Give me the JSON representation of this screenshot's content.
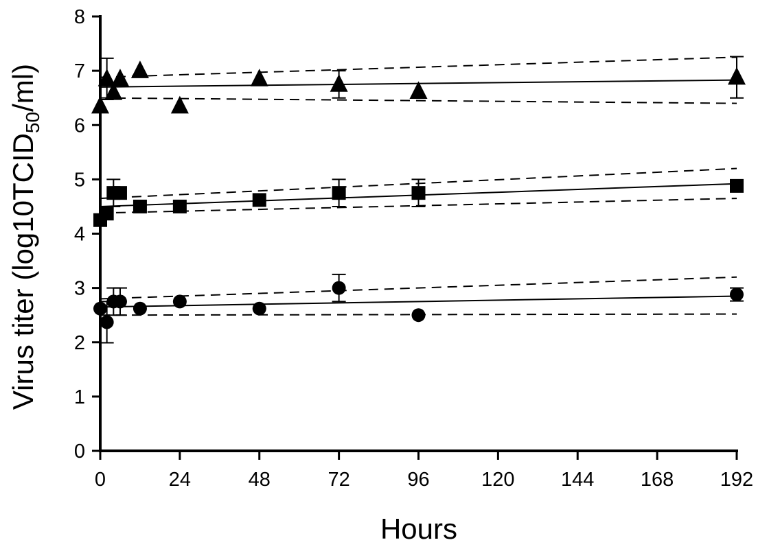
{
  "chart_data": {
    "type": "scatter",
    "title": "",
    "xlabel": "Hours",
    "ylabel": {
      "prefix": "Virus titer (log10TCID",
      "subscript": "50",
      "suffix": "/ml)"
    },
    "xlim": [
      0,
      192
    ],
    "ylim": [
      0,
      8
    ],
    "x_ticks": [
      0,
      24,
      48,
      72,
      96,
      120,
      144,
      168,
      192
    ],
    "y_ticks": [
      0,
      1,
      2,
      3,
      4,
      5,
      6,
      7,
      8
    ],
    "grid": false,
    "legend": "none",
    "color": "#000000",
    "series": [
      {
        "marker": "triangle",
        "points": [
          {
            "x": 0,
            "y": 6.35,
            "err": 0.0
          },
          {
            "x": 2,
            "y": 6.85,
            "err": 0.38
          },
          {
            "x": 4,
            "y": 6.6,
            "err": 0.0
          },
          {
            "x": 6,
            "y": 6.85,
            "err": 0.0
          },
          {
            "x": 12,
            "y": 7.0,
            "err": 0.0
          },
          {
            "x": 24,
            "y": 6.35,
            "err": 0.0
          },
          {
            "x": 48,
            "y": 6.85,
            "err": 0.0
          },
          {
            "x": 72,
            "y": 6.75,
            "err": 0.25
          },
          {
            "x": 96,
            "y": 6.62,
            "err": 0.0
          },
          {
            "x": 192,
            "y": 6.88,
            "err": 0.38
          }
        ],
        "fit": {
          "y0": 6.7,
          "y1": 6.83
        },
        "ci_upper": {
          "y0": 6.88,
          "y1": 7.25
        },
        "ci_lower": {
          "y0": 6.5,
          "y1": 6.4
        }
      },
      {
        "marker": "square",
        "points": [
          {
            "x": 0,
            "y": 4.25,
            "err": 0.0
          },
          {
            "x": 2,
            "y": 4.37,
            "err": 0.0
          },
          {
            "x": 4,
            "y": 4.75,
            "err": 0.25
          },
          {
            "x": 6,
            "y": 4.75,
            "err": 0.0
          },
          {
            "x": 12,
            "y": 4.5,
            "err": 0.0
          },
          {
            "x": 24,
            "y": 4.5,
            "err": 0.0
          },
          {
            "x": 48,
            "y": 4.62,
            "err": 0.0
          },
          {
            "x": 72,
            "y": 4.75,
            "err": 0.25
          },
          {
            "x": 96,
            "y": 4.75,
            "err": 0.25
          },
          {
            "x": 192,
            "y": 4.88,
            "err": 0.0
          }
        ],
        "fit": {
          "y0": 4.5,
          "y1": 4.92
        },
        "ci_upper": {
          "y0": 4.65,
          "y1": 5.2
        },
        "ci_lower": {
          "y0": 4.38,
          "y1": 4.65
        }
      },
      {
        "marker": "circle",
        "points": [
          {
            "x": 0,
            "y": 2.62,
            "err": 0.0
          },
          {
            "x": 2,
            "y": 2.37,
            "err": 0.38
          },
          {
            "x": 4,
            "y": 2.75,
            "err": 0.25
          },
          {
            "x": 6,
            "y": 2.75,
            "err": 0.25
          },
          {
            "x": 12,
            "y": 2.62,
            "err": 0.0
          },
          {
            "x": 24,
            "y": 2.75,
            "err": 0.0
          },
          {
            "x": 48,
            "y": 2.62,
            "err": 0.0
          },
          {
            "x": 72,
            "y": 3.0,
            "err": 0.25
          },
          {
            "x": 96,
            "y": 2.5,
            "err": 0.0
          },
          {
            "x": 192,
            "y": 2.88,
            "err": 0.12
          }
        ],
        "fit": {
          "y0": 2.65,
          "y1": 2.85
        },
        "ci_upper": {
          "y0": 2.8,
          "y1": 3.2
        },
        "ci_lower": {
          "y0": 2.5,
          "y1": 2.52
        }
      }
    ]
  }
}
